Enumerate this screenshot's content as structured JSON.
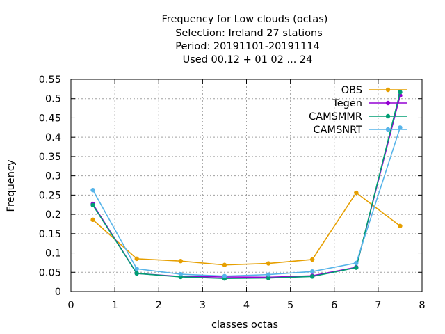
{
  "chart_data": {
    "type": "line",
    "title_lines": [
      "Frequency  for Low clouds (octas)",
      "Selection: Ireland      27 stations",
      "Period: 20191101-20191114",
      "Used  00,12  + 01 02 ... 24"
    ],
    "xlabel": "classes octas",
    "ylabel": "Frequency",
    "xlim": [
      0,
      8
    ],
    "ylim": [
      0,
      0.55
    ],
    "xticks": [
      "0",
      "1",
      "2",
      "3",
      "4",
      "5",
      "6",
      "7",
      "8"
    ],
    "yticks": [
      "0",
      "0.05",
      "0.1",
      "0.15",
      "0.2",
      "0.25",
      "0.3",
      "0.35",
      "0.4",
      "0.45",
      "0.5",
      "0.55"
    ],
    "grid": true,
    "legend_position": "top-right",
    "x": [
      0.5,
      1.5,
      2.5,
      3.5,
      4.5,
      5.5,
      6.5,
      7.5
    ],
    "series": [
      {
        "name": "OBS",
        "color": "#e69f00",
        "marker": "circle",
        "values": [
          0.186,
          0.085,
          0.079,
          0.069,
          0.073,
          0.083,
          0.256,
          0.17
        ]
      },
      {
        "name": "Tegen",
        "color": "#9400d3",
        "marker": "circle",
        "values": [
          0.227,
          0.047,
          0.039,
          0.038,
          0.037,
          0.041,
          0.063,
          0.508
        ]
      },
      {
        "name": "CAMSMMR",
        "color": "#009e73",
        "marker": "circle",
        "values": [
          0.224,
          0.047,
          0.038,
          0.034,
          0.035,
          0.039,
          0.062,
          0.517
        ]
      },
      {
        "name": "CAMSNRT",
        "color": "#56b4e9",
        "marker": "circle",
        "values": [
          0.263,
          0.059,
          0.045,
          0.04,
          0.044,
          0.052,
          0.074,
          0.425
        ]
      }
    ]
  }
}
